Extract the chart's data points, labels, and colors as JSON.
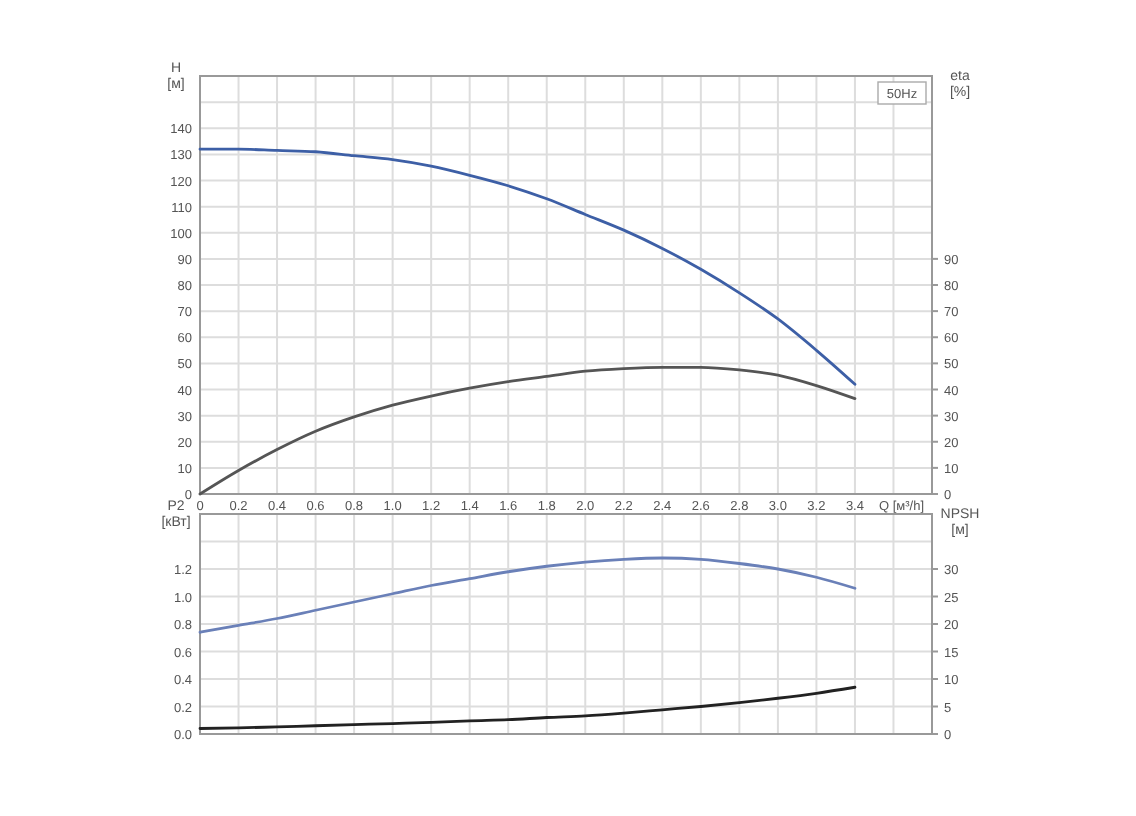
{
  "chart_data": [
    {
      "type": "line",
      "ylabel": "H [м]",
      "y2label": "eta [%]",
      "xlabel": "Q [м³/h]",
      "annotations": [
        "50Hz"
      ],
      "x": [
        0,
        0.2,
        0.4,
        0.6,
        0.8,
        1.0,
        1.2,
        1.4,
        1.6,
        1.8,
        2.0,
        2.2,
        2.4,
        2.6,
        2.8,
        3.0,
        3.2,
        3.4
      ],
      "xlim": [
        0,
        3.8
      ],
      "xticks": [
        0,
        0.2,
        0.4,
        0.6,
        0.8,
        {
          "value": 1,
          "label": "1.0"
        },
        1.2,
        1.4,
        1.6,
        1.8,
        {
          "value": 2,
          "label": "2.0"
        },
        2.2,
        2.4,
        2.6,
        2.8,
        {
          "value": 3,
          "label": "3.0"
        },
        3.2,
        3.4,
        {
          "value": 3.6,
          "label": null
        }
      ],
      "ylim": [
        0,
        160
      ],
      "yticks": [
        0,
        10,
        20,
        30,
        40,
        50,
        60,
        70,
        80,
        90,
        100,
        110,
        120,
        130,
        140,
        {
          "value": 150,
          "label": null
        }
      ],
      "y2lim": [
        0,
        160
      ],
      "y2ticks": [
        0,
        10,
        20,
        30,
        40,
        50,
        60,
        70,
        80,
        90
      ],
      "grid": true,
      "marker": "none",
      "line_style": "solid",
      "series": [
        {
          "color": "#3d5fa6",
          "values": [
            132,
            132,
            131.5,
            131,
            129.5,
            128,
            125.5,
            122,
            118,
            113,
            107,
            101,
            94,
            86,
            77,
            67,
            55,
            42
          ]
        },
        {
          "color": "#555555",
          "axis": "y2",
          "values": [
            0,
            9,
            17,
            24,
            29.5,
            34,
            37.5,
            40.5,
            43,
            45,
            47,
            48,
            48.5,
            48.5,
            47.5,
            45.5,
            41.5,
            36.5
          ]
        }
      ]
    },
    {
      "type": "line",
      "ylabel": "P2 [кВт]",
      "y2label": "NPSH [м]",
      "x": [
        0,
        0.2,
        0.4,
        0.6,
        0.8,
        1.0,
        1.2,
        1.4,
        1.6,
        1.8,
        2.0,
        2.2,
        2.4,
        2.6,
        2.8,
        3.0,
        3.2,
        3.4
      ],
      "xlim": [
        0,
        3.8
      ],
      "xticks": [
        0,
        0.2,
        0.4,
        0.6,
        0.8,
        1.0,
        1.2,
        1.4,
        1.6,
        1.8,
        2.0,
        2.2,
        2.4,
        2.6,
        2.8,
        3.0,
        3.2,
        3.4,
        3.6
      ],
      "ylim": [
        0,
        1.6
      ],
      "yticks": [
        {
          "value": 0,
          "label": "0.0"
        },
        0.2,
        0.4,
        0.6,
        0.8,
        {
          "value": 1,
          "label": "1.0"
        },
        1.2,
        {
          "value": 1.4,
          "label": null
        }
      ],
      "y2lim": [
        0,
        40
      ],
      "y2ticks": [
        0,
        5,
        10,
        15,
        20,
        25,
        30
      ],
      "tick_labels": "y",
      "grid": true,
      "marker": "none",
      "line_style": "solid",
      "series": [
        {
          "color": "#6a80b8",
          "values": [
            0.74,
            0.79,
            0.84,
            0.9,
            0.96,
            1.02,
            1.08,
            1.13,
            1.18,
            1.22,
            1.25,
            1.27,
            1.28,
            1.27,
            1.24,
            1.2,
            1.14,
            1.06
          ]
        },
        {
          "color": "#222222",
          "axis": "y2",
          "values": [
            1,
            1.1,
            1.3,
            1.5,
            1.7,
            1.9,
            2.1,
            2.4,
            2.6,
            3,
            3.3,
            3.8,
            4.4,
            5,
            5.7,
            6.5,
            7.4,
            8.5
          ]
        }
      ]
    }
  ]
}
